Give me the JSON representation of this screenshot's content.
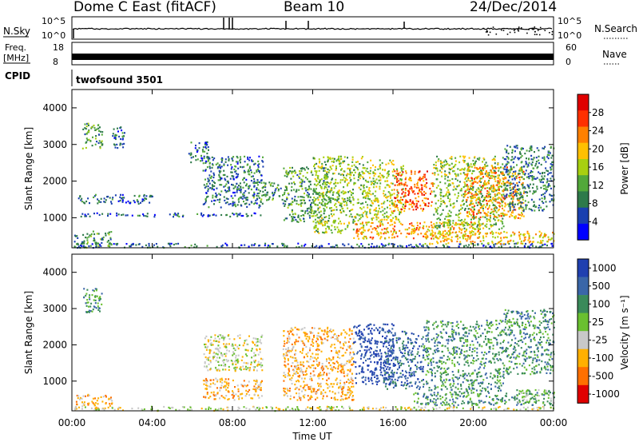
{
  "header": {
    "station": "Dome C East (fitACF)",
    "beam": "Beam 10",
    "date": "24/Dec/2014"
  },
  "status_panels": {
    "nsky_label": "N.Sky",
    "nsky_ticks": [
      "10^5",
      "10^0"
    ],
    "nsearch_label": "N.Search",
    "freq_label": "Freq.",
    "freq_unit": "[MHz]",
    "freq_ticks": [
      "18",
      "8"
    ],
    "nave_ticks": [
      "60",
      "0"
    ],
    "nave_label": "Nave",
    "cpid_label": "CPID",
    "cpid_value": "twofsound 3501"
  },
  "x_axis": {
    "label": "Time UT",
    "ticks": [
      "00:00",
      "04:00",
      "08:00",
      "12:00",
      "16:00",
      "20:00",
      "00:00"
    ]
  },
  "chart_data": [
    {
      "type": "heatmap",
      "name": "power",
      "ylabel": "Slant Range [km]",
      "ylim": [
        180,
        4500
      ],
      "yticks": [
        "1000",
        "2000",
        "3000",
        "4000"
      ],
      "xlim": [
        0,
        24
      ],
      "colorbar": {
        "label": "Power [dB]",
        "range": [
          0,
          32
        ],
        "ticks": [
          "4",
          "8",
          "12",
          "16",
          "20",
          "24",
          "28"
        ],
        "colors": [
          "#0000ff",
          "#1a40b0",
          "#2e7a4a",
          "#52a83a",
          "#a8d010",
          "#ffc000",
          "#ff8000",
          "#ff3000",
          "#e00000"
        ]
      },
      "regions": [
        {
          "t0": 0.1,
          "t1": 2.0,
          "r0": 200,
          "r1": 650,
          "v": 9
        },
        {
          "t0": 0.1,
          "t1": 24.0,
          "r0": 200,
          "r1": 320,
          "v": 6
        },
        {
          "t0": 0.3,
          "t1": 9.5,
          "r0": 1050,
          "r1": 1150,
          "v": 5
        },
        {
          "t0": 0.3,
          "t1": 4.0,
          "r0": 1400,
          "r1": 1650,
          "v": 6
        },
        {
          "t0": 0.5,
          "t1": 1.5,
          "r0": 2900,
          "r1": 3600,
          "v": 11
        },
        {
          "t0": 2.0,
          "t1": 2.6,
          "r0": 2900,
          "r1": 3600,
          "v": 6
        },
        {
          "t0": 5.8,
          "t1": 6.8,
          "r0": 2500,
          "r1": 3100,
          "v": 6
        },
        {
          "t0": 6.5,
          "t1": 9.5,
          "r0": 1300,
          "r1": 2700,
          "v": 7
        },
        {
          "t0": 9.0,
          "t1": 10.5,
          "r0": 1500,
          "r1": 2000,
          "v": 9
        },
        {
          "t0": 10.5,
          "t1": 12.8,
          "r0": 900,
          "r1": 2400,
          "v": 11
        },
        {
          "t0": 12.0,
          "t1": 14.5,
          "r0": 600,
          "r1": 2700,
          "v": 14
        },
        {
          "t0": 14.5,
          "t1": 16.5,
          "r0": 900,
          "r1": 2600,
          "v": 16
        },
        {
          "t0": 16.0,
          "t1": 18.0,
          "r0": 1200,
          "r1": 2300,
          "v": 26
        },
        {
          "t0": 14.0,
          "t1": 20.5,
          "r0": 450,
          "r1": 900,
          "v": 22
        },
        {
          "t0": 18.0,
          "t1": 21.5,
          "r0": 700,
          "r1": 2700,
          "v": 14
        },
        {
          "t0": 19.5,
          "t1": 22.5,
          "r0": 1000,
          "r1": 2400,
          "v": 22
        },
        {
          "t0": 21.5,
          "t1": 24.0,
          "r0": 1200,
          "r1": 3000,
          "v": 8
        },
        {
          "t0": 17.5,
          "t1": 24.0,
          "r0": 300,
          "r1": 650,
          "v": 20
        }
      ]
    },
    {
      "type": "heatmap",
      "name": "velocity",
      "ylabel": "Slant Range [km]",
      "ylim": [
        180,
        4500
      ],
      "yticks": [
        "1000",
        "2000",
        "3000",
        "4000"
      ],
      "xlim": [
        0,
        24
      ],
      "colorbar": {
        "label": "Velocity [m s⁻¹]",
        "ticks": [
          "1000",
          "500",
          "100",
          "25",
          "-25",
          "-100",
          "-500",
          "-1000"
        ],
        "colors": [
          "#2040b0",
          "#3a66a8",
          "#3a8a5a",
          "#6ac030",
          "#c8c8c8",
          "#ffb000",
          "#ff7000",
          "#e00000"
        ]
      },
      "regions": [
        {
          "t0": 0.1,
          "t1": 2.0,
          "r0": 250,
          "r1": 650,
          "v": 5
        },
        {
          "t0": 0.1,
          "t1": 24.0,
          "r0": 200,
          "r1": 320,
          "v": 4
        },
        {
          "t0": 0.5,
          "t1": 1.5,
          "r0": 2900,
          "r1": 3600,
          "v": 2
        },
        {
          "t0": 6.5,
          "t1": 9.5,
          "r0": 1300,
          "r1": 2300,
          "v": 4
        },
        {
          "t0": 6.5,
          "t1": 9.5,
          "r0": 500,
          "r1": 1100,
          "v": 5
        },
        {
          "t0": 10.5,
          "t1": 14.0,
          "r0": 500,
          "r1": 2500,
          "v": 5
        },
        {
          "t0": 14.0,
          "t1": 16.0,
          "r0": 900,
          "r1": 2600,
          "v": 0
        },
        {
          "t0": 15.5,
          "t1": 17.5,
          "r0": 800,
          "r1": 2400,
          "v": 1
        },
        {
          "t0": 17.5,
          "t1": 21.5,
          "r0": 700,
          "r1": 2700,
          "v": 2
        },
        {
          "t0": 17.0,
          "t1": 24.0,
          "r0": 350,
          "r1": 700,
          "v": 2
        },
        {
          "t0": 21.5,
          "t1": 24.0,
          "r0": 1200,
          "r1": 3000,
          "v": 2
        },
        {
          "t0": 22.0,
          "t1": 24.0,
          "r0": 400,
          "r1": 800,
          "v": 3
        }
      ]
    }
  ]
}
